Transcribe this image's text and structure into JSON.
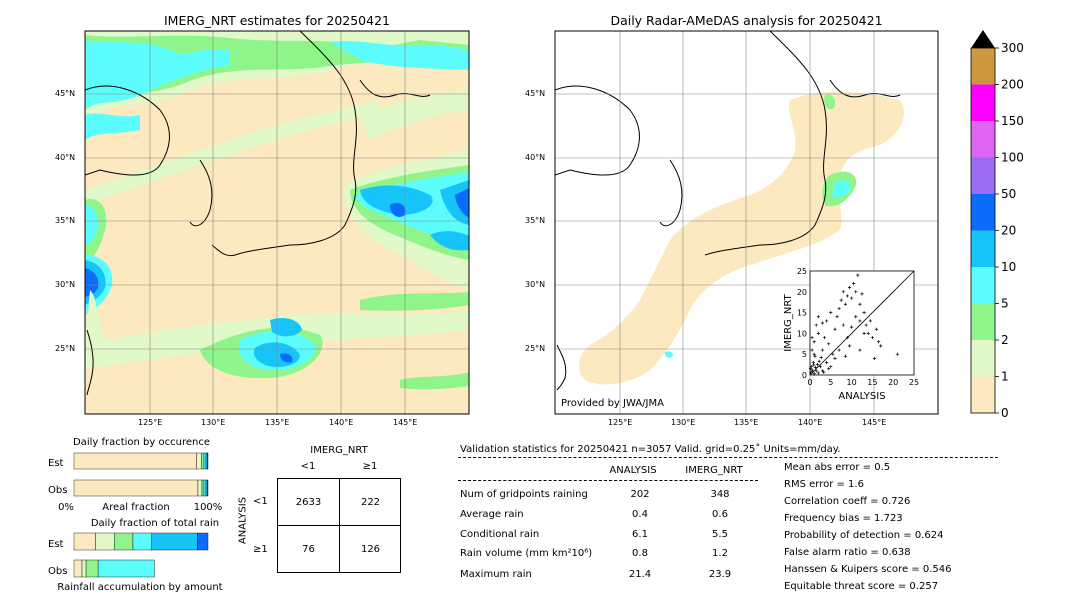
{
  "chart_data": [
    {
      "type": "map",
      "title": "IMERG_NRT estimates for 20250421",
      "lon_ticks": [
        "125°E",
        "130°E",
        "135°E",
        "140°E",
        "145°E"
      ],
      "lat_ticks": [
        "45°N",
        "40°N",
        "35°N",
        "30°N",
        "25°N"
      ]
    },
    {
      "type": "map",
      "title": "Daily Radar-AMeDAS analysis for 20250421",
      "lon_ticks": [
        "125°E",
        "130°E",
        "135°E",
        "140°E",
        "145°E"
      ],
      "lat_ticks": [
        "45°N",
        "40°N",
        "35°N",
        "30°N",
        "25°N"
      ],
      "annotation": "Provided by JWA/JMA"
    },
    {
      "type": "colorbar",
      "levels": [
        "0",
        "1",
        "2",
        "5",
        "10",
        "20",
        "50",
        "100",
        "150",
        "200",
        "300"
      ],
      "colors": [
        "#fde9bf",
        "#e1f8c8",
        "#8ff58b",
        "#5cfcfc",
        "#16c4fa",
        "#0a6cf9",
        "#9a6cf4",
        "#e064f4",
        "#ff00ff",
        "#cc9940"
      ]
    },
    {
      "type": "scatter",
      "xlabel": "ANALYSIS",
      "ylabel": "IMERG_NRT",
      "xlim": [
        0,
        25
      ],
      "ylim": [
        0,
        25
      ],
      "x_ticks": [
        "0",
        "5",
        "10",
        "15",
        "20",
        "25"
      ],
      "y_ticks": [
        "0",
        "5",
        "10",
        "15",
        "20",
        "25"
      ],
      "points": [
        [
          0.2,
          0.5
        ],
        [
          0.5,
          1.2
        ],
        [
          1.0,
          0.3
        ],
        [
          0.3,
          2.0
        ],
        [
          1.5,
          1.0
        ],
        [
          2.0,
          0.5
        ],
        [
          0.8,
          3.0
        ],
        [
          1.2,
          4.5
        ],
        [
          0.5,
          6.0
        ],
        [
          2.5,
          2.0
        ],
        [
          3.0,
          1.0
        ],
        [
          1.0,
          8.0
        ],
        [
          2.0,
          10.0
        ],
        [
          1.5,
          12.0
        ],
        [
          3.0,
          6.0
        ],
        [
          4.0,
          3.0
        ],
        [
          5.0,
          2.0
        ],
        [
          3.5,
          9.0
        ],
        [
          4.5,
          7.5
        ],
        [
          5.5,
          5.0
        ],
        [
          6.0,
          11.0
        ],
        [
          6.5,
          14.0
        ],
        [
          7.0,
          16.0
        ],
        [
          7.5,
          18.0
        ],
        [
          8.0,
          20.0
        ],
        [
          8.5,
          17.0
        ],
        [
          9.0,
          19.0
        ],
        [
          9.5,
          21.0
        ],
        [
          10.0,
          18.5
        ],
        [
          10.5,
          22.0
        ],
        [
          11.0,
          20.0
        ],
        [
          11.5,
          24.0
        ],
        [
          12.0,
          17.0
        ],
        [
          12.5,
          19.5
        ],
        [
          13.0,
          15.0
        ],
        [
          13.5,
          12.0
        ],
        [
          14.0,
          10.0
        ],
        [
          14.5,
          13.0
        ],
        [
          15.0,
          9.0
        ],
        [
          16.0,
          11.0
        ],
        [
          16.5,
          8.0
        ],
        [
          17.0,
          7.0
        ],
        [
          8.0,
          12.0
        ],
        [
          9.0,
          9.0
        ],
        [
          10.0,
          11.5
        ],
        [
          11.0,
          14.0
        ],
        [
          12.0,
          13.0
        ],
        [
          13.0,
          10.0
        ],
        [
          7.0,
          6.0
        ],
        [
          6.0,
          4.0
        ],
        [
          4.0,
          13.0
        ],
        [
          5.0,
          15.0
        ],
        [
          3.0,
          12.5
        ],
        [
          2.0,
          14.0
        ],
        [
          1.0,
          5.0
        ],
        [
          0.5,
          9.0
        ],
        [
          1.8,
          2.5
        ],
        [
          2.2,
          3.3
        ],
        [
          0.1,
          1.5
        ],
        [
          0.6,
          0.8
        ],
        [
          21.0,
          5.0
        ],
        [
          15.5,
          4.0
        ],
        [
          12.0,
          6.0
        ],
        [
          9.5,
          7.0
        ],
        [
          8.5,
          4.5
        ],
        [
          4.5,
          1.5
        ],
        [
          3.3,
          0.7
        ],
        [
          2.7,
          4.2
        ],
        [
          1.3,
          1.8
        ],
        [
          0.9,
          2.4
        ]
      ]
    },
    {
      "type": "bar",
      "title": "Daily fraction by occurence",
      "categories": [
        "Est",
        "Obs"
      ],
      "xlabel": "Areal fraction",
      "x_ticks": [
        "0%",
        "100%"
      ],
      "series": [
        {
          "values": [
            0.915,
            0.925
          ],
          "color": "#fde9bf"
        },
        {
          "values": [
            0.035,
            0.03
          ],
          "color": "#e1f8c8"
        },
        {
          "values": [
            0.02,
            0.015
          ],
          "color": "#8ff58b"
        },
        {
          "values": [
            0.015,
            0.015
          ],
          "color": "#5cfcfc"
        },
        {
          "values": [
            0.01,
            0.01
          ],
          "color": "#16c4fa"
        },
        {
          "values": [
            0.005,
            0.005
          ],
          "color": "#0a6cf9"
        }
      ]
    },
    {
      "type": "bar",
      "title": "Daily fraction of total rain",
      "categories": [
        "Est",
        "Obs"
      ],
      "xlabel": "Rainfall accumulation by amount",
      "series": [
        {
          "values": [
            0.16,
            0.06
          ],
          "color": "#fde9bf"
        },
        {
          "values": [
            0.14,
            0.03
          ],
          "color": "#e1f8c8"
        },
        {
          "values": [
            0.14,
            0.09
          ],
          "color": "#8ff58b"
        },
        {
          "values": [
            0.14,
            0.42
          ],
          "color": "#5cfcfc"
        },
        {
          "values": [
            0.34,
            0.0
          ],
          "color": "#16c4fa"
        },
        {
          "values": [
            0.08,
            0.0
          ],
          "color": "#0a6cf9"
        }
      ]
    }
  ],
  "contingency": {
    "title": "IMERG_NRT",
    "col_labels": [
      "<1",
      "≥1"
    ],
    "row_axis_label": "ANALYSIS",
    "row_labels": [
      "<1",
      "≥1"
    ],
    "cells": [
      [
        "2633",
        "222"
      ],
      [
        "76",
        "126"
      ]
    ]
  },
  "validation": {
    "header": "Validation statistics for 20250421  n=3057 Valid. grid=0.25˚ Units=mm/day.",
    "col_analysis": "ANALYSIS",
    "col_imerg": "IMERG_NRT",
    "rows": [
      {
        "label": "Num of gridpoints raining",
        "analysis": "202",
        "imerg": "348"
      },
      {
        "label": "Average rain",
        "analysis": "0.4",
        "imerg": "0.6"
      },
      {
        "label": "Conditional rain",
        "analysis": "6.1",
        "imerg": "5.5"
      },
      {
        "label": "Rain volume (mm km²10⁶)",
        "analysis": "0.8",
        "imerg": "1.2"
      },
      {
        "label": "Maximum rain",
        "analysis": "21.4",
        "imerg": "23.9"
      }
    ],
    "scores": [
      "Mean abs error =    0.5",
      "RMS error =    1.6",
      "Correlation coeff =  0.726",
      "Frequency bias =  1.723",
      "Probability of detection =  0.624",
      "False alarm ratio =  0.638",
      "Hanssen & Kuipers score =  0.546",
      "Equitable threat score =  0.257"
    ]
  }
}
